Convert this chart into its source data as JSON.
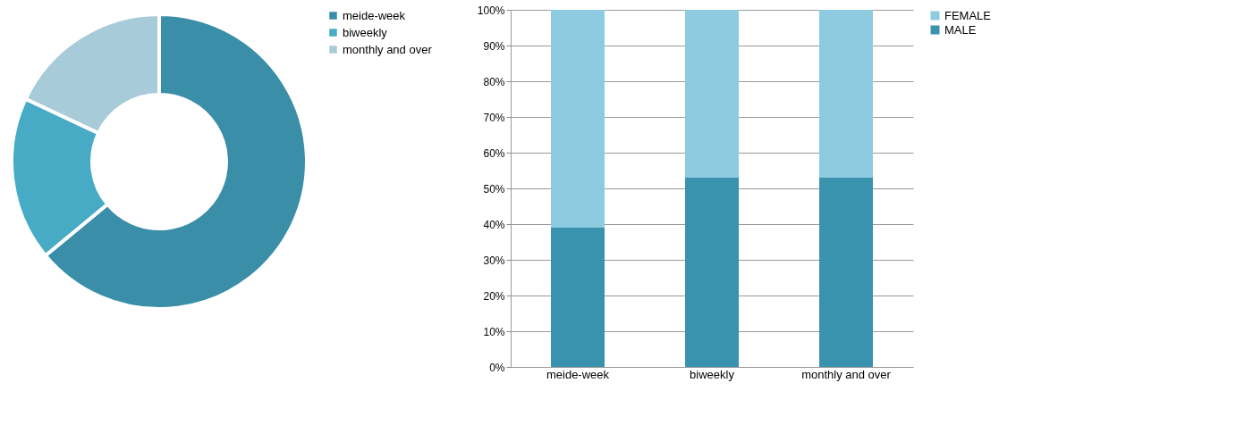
{
  "chart_data": [
    {
      "type": "donut",
      "categories": [
        "meide-week",
        "biweekly",
        "monthly and over"
      ],
      "values": [
        64,
        18,
        18
      ],
      "colors": [
        "#3a8ea8",
        "#48abc6",
        "#a7cbd9"
      ],
      "legend": "right"
    },
    {
      "type": "bar",
      "categories": [
        "meide-week",
        "biweekly",
        "monthly and over"
      ],
      "stacked": true,
      "series": [
        {
          "name": "MALE",
          "color": "#3a93ae",
          "values": [
            39,
            53,
            53
          ]
        },
        {
          "name": "FEMALE",
          "color": "#8fcbe0",
          "values": [
            61,
            47,
            47
          ]
        }
      ],
      "ylim": [
        0,
        100
      ],
      "yticks": [
        {
          "value": 0,
          "label": "0%"
        },
        {
          "value": 10,
          "label": "10%"
        },
        {
          "value": 20,
          "label": "20%"
        },
        {
          "value": 30,
          "label": "30%"
        },
        {
          "value": 40,
          "label": "40%"
        },
        {
          "value": 50,
          "label": "50%"
        },
        {
          "value": 60,
          "label": "60%"
        },
        {
          "value": 70,
          "label": "70%"
        },
        {
          "value": 80,
          "label": "80%"
        },
        {
          "value": 90,
          "label": "90%"
        },
        {
          "value": 100,
          "label": "100%"
        }
      ],
      "grid": "y",
      "legend": "right"
    }
  ]
}
